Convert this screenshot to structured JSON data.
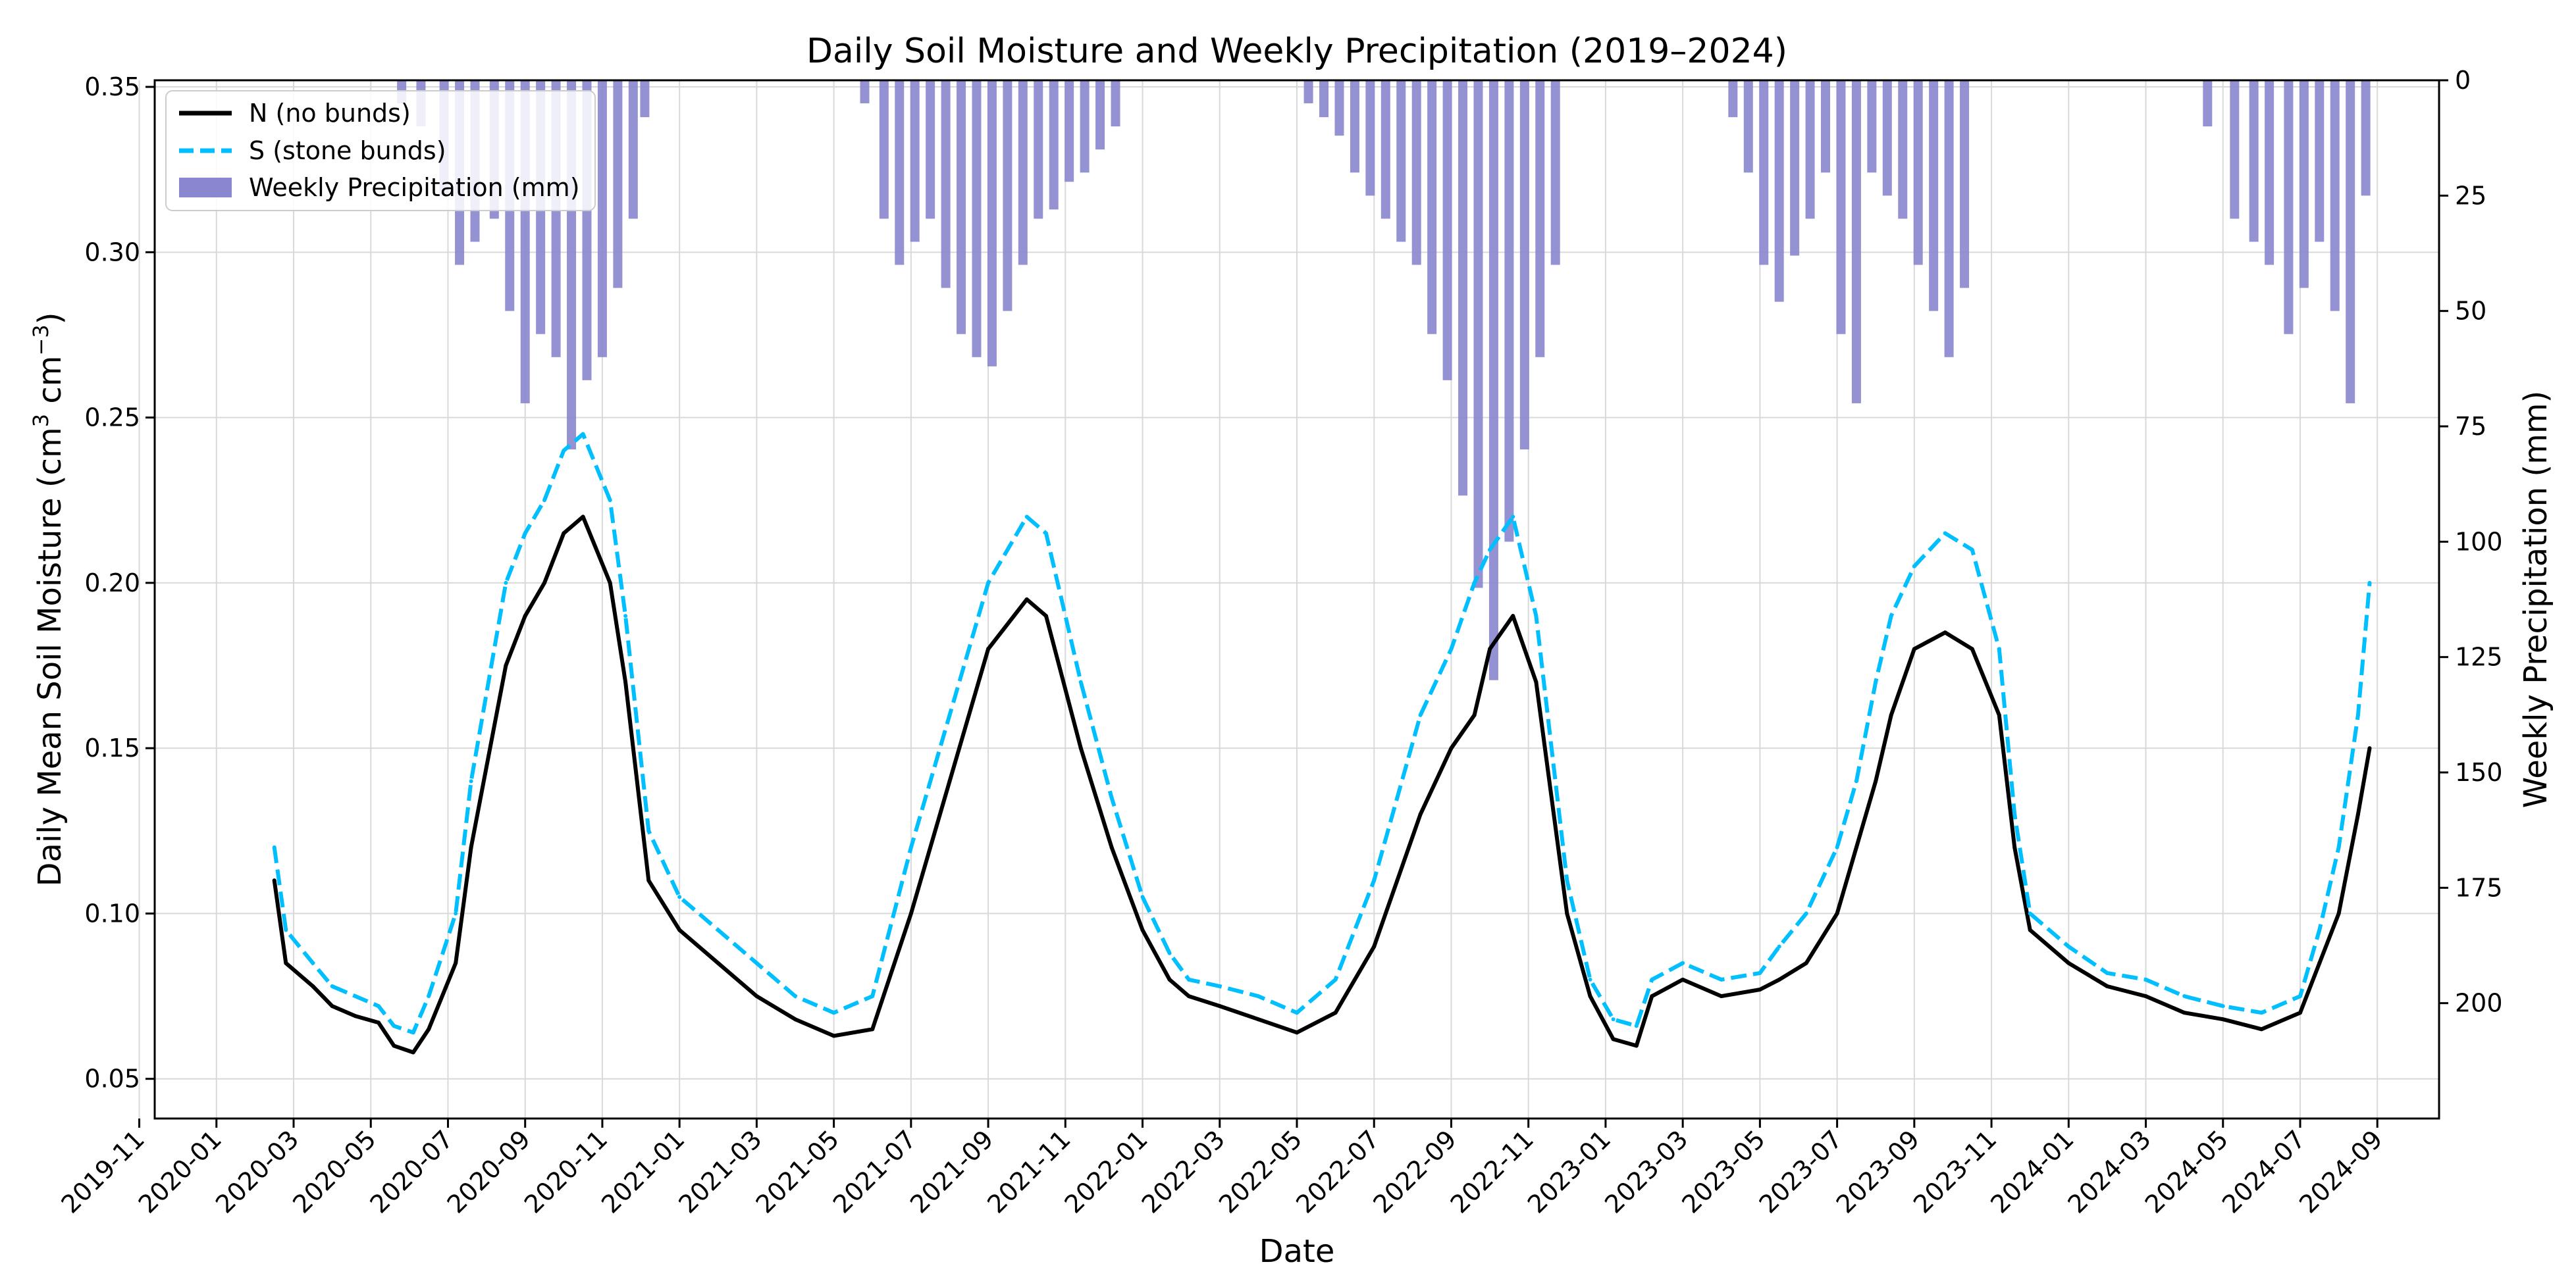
{
  "chart_data": {
    "type": "line",
    "title": "Daily Soil Moisture and Weekly Precipitation (2019–2024)",
    "xlabel": "Date",
    "ylabel": "Daily Mean Soil Moisture (cm³ cm⁻³)",
    "ylabel_parts": {
      "a": "Daily Mean Soil Moisture (cm",
      "b": "3",
      "c": " cm",
      "d": "−3",
      "e": ")"
    },
    "y2label": "Weekly Precipitation (mm)",
    "ylim": [
      0.038,
      0.352
    ],
    "y2lim_inverted": [
      0,
      225
    ],
    "y_ticks": [
      "0.05",
      "0.10",
      "0.15",
      "0.20",
      "0.25",
      "0.30",
      "0.35"
    ],
    "y_tick_values": [
      0.05,
      0.1,
      0.15,
      0.2,
      0.25,
      0.3,
      0.35
    ],
    "y2_ticks": [
      "0",
      "25",
      "50",
      "75",
      "100",
      "125",
      "150",
      "175",
      "200"
    ],
    "y2_tick_values": [
      0,
      25,
      50,
      75,
      100,
      125,
      150,
      175,
      200
    ],
    "x_ticks": [
      "2019-11",
      "2020-01",
      "2020-03",
      "2020-05",
      "2020-07",
      "2020-09",
      "2020-11",
      "2021-01",
      "2021-03",
      "2021-05",
      "2021-07",
      "2021-09",
      "2021-11",
      "2022-01",
      "2022-03",
      "2022-05",
      "2022-07",
      "2022-09",
      "2022-11",
      "2023-01",
      "2023-03",
      "2023-05",
      "2023-07",
      "2023-09",
      "2023-11",
      "2024-01",
      "2024-03",
      "2024-05",
      "2024-07",
      "2024-09"
    ],
    "x_range_months": [
      -1.6,
      57.6
    ],
    "grid": true,
    "legend_position": "top-left",
    "legend": {
      "n": "N (no bunds)",
      "s": "S (stone bunds)",
      "p": "Weekly Precipitation (mm)"
    },
    "colors": {
      "n": "#000000",
      "s": "#00bfff",
      "precip": "#8a86cf"
    },
    "series": [
      {
        "name": "N (no bunds)",
        "key": "n",
        "x_months": [
          1.5,
          1.8,
          2.5,
          3,
          3.6,
          4.2,
          4.6,
          5.1,
          5.5,
          6.2,
          6.6,
          7.5,
          8,
          8.5,
          9,
          9.5,
          10.2,
          10.6,
          11.2,
          12,
          13,
          14,
          15,
          16,
          17,
          18,
          19,
          20,
          21,
          21.5,
          22.4,
          23.2,
          24,
          24.7,
          25.2,
          26,
          27,
          28,
          29,
          30,
          30.6,
          31.2,
          32,
          32.6,
          33,
          33.6,
          34.2,
          35,
          35.6,
          36.2,
          36.8,
          37.2,
          38,
          39,
          40,
          40.5,
          41.2,
          42,
          42.5,
          43,
          43.4,
          44,
          44.8,
          45.5,
          46.2,
          46.6,
          47,
          48,
          49,
          50,
          51,
          52,
          53,
          54,
          54.5,
          55,
          55.5,
          55.8
        ],
        "values": [
          0.11,
          0.085,
          0.078,
          0.072,
          0.069,
          0.067,
          0.06,
          0.058,
          0.065,
          0.085,
          0.12,
          0.175,
          0.19,
          0.2,
          0.215,
          0.22,
          0.2,
          0.17,
          0.11,
          0.095,
          0.085,
          0.075,
          0.068,
          0.063,
          0.065,
          0.1,
          0.14,
          0.18,
          0.195,
          0.19,
          0.15,
          0.12,
          0.095,
          0.08,
          0.075,
          0.072,
          0.068,
          0.064,
          0.07,
          0.09,
          0.11,
          0.13,
          0.15,
          0.16,
          0.18,
          0.19,
          0.17,
          0.1,
          0.075,
          0.062,
          0.06,
          0.075,
          0.08,
          0.075,
          0.077,
          0.08,
          0.085,
          0.1,
          0.12,
          0.14,
          0.16,
          0.18,
          0.185,
          0.18,
          0.16,
          0.12,
          0.095,
          0.085,
          0.078,
          0.075,
          0.07,
          0.068,
          0.065,
          0.07,
          0.085,
          0.1,
          0.13,
          0.15
        ]
      },
      {
        "name": "S (stone bunds)",
        "key": "s",
        "x_months": [
          1.5,
          1.8,
          2.5,
          3,
          3.6,
          4.2,
          4.6,
          5.1,
          5.5,
          6.2,
          6.6,
          7.5,
          8,
          8.5,
          9,
          9.5,
          10.2,
          10.6,
          11.2,
          12,
          13,
          14,
          15,
          16,
          17,
          18,
          19,
          20,
          21,
          21.5,
          22.4,
          23.2,
          24,
          24.7,
          25.2,
          26,
          27,
          28,
          29,
          30,
          30.6,
          31.2,
          32,
          32.6,
          33,
          33.6,
          34.2,
          35,
          35.6,
          36.2,
          36.8,
          37.2,
          38,
          39,
          40,
          40.5,
          41.2,
          42,
          42.5,
          43,
          43.4,
          44,
          44.8,
          45.5,
          46.2,
          46.6,
          47,
          48,
          49,
          50,
          51,
          52,
          53,
          54,
          54.5,
          55,
          55.5,
          55.8
        ],
        "values": [
          0.12,
          0.095,
          0.085,
          0.078,
          0.075,
          0.072,
          0.066,
          0.064,
          0.075,
          0.1,
          0.14,
          0.2,
          0.215,
          0.225,
          0.24,
          0.245,
          0.225,
          0.19,
          0.125,
          0.105,
          0.095,
          0.085,
          0.075,
          0.07,
          0.075,
          0.12,
          0.16,
          0.2,
          0.22,
          0.215,
          0.17,
          0.135,
          0.105,
          0.088,
          0.08,
          0.078,
          0.075,
          0.07,
          0.08,
          0.11,
          0.135,
          0.16,
          0.18,
          0.2,
          0.21,
          0.22,
          0.19,
          0.11,
          0.08,
          0.068,
          0.066,
          0.08,
          0.085,
          0.08,
          0.082,
          0.09,
          0.1,
          0.12,
          0.14,
          0.17,
          0.19,
          0.205,
          0.215,
          0.21,
          0.18,
          0.13,
          0.1,
          0.09,
          0.082,
          0.08,
          0.075,
          0.072,
          0.07,
          0.075,
          0.095,
          0.12,
          0.16,
          0.2
        ]
      },
      {
        "name": "Weekly Precipitation (mm)",
        "key": "p",
        "type": "bar",
        "x_months": [
          4.8,
          5.3,
          5.9,
          6.3,
          6.7,
          7.2,
          7.6,
          8.0,
          8.4,
          8.8,
          9.2,
          9.6,
          10.0,
          10.4,
          10.8,
          11.1,
          16.8,
          17.3,
          17.7,
          18.1,
          18.5,
          18.9,
          19.3,
          19.7,
          20.1,
          20.5,
          20.9,
          21.3,
          21.7,
          22.1,
          22.5,
          22.9,
          23.3,
          28.3,
          28.7,
          29.1,
          29.5,
          29.9,
          30.3,
          30.7,
          31.1,
          31.5,
          31.9,
          32.3,
          32.7,
          33.1,
          33.5,
          33.9,
          34.3,
          34.7,
          39.3,
          39.7,
          40.1,
          40.5,
          40.9,
          41.3,
          41.7,
          42.1,
          42.5,
          42.9,
          43.3,
          43.7,
          44.1,
          44.5,
          44.9,
          45.3,
          51.6,
          52.3,
          52.8,
          53.2,
          53.7,
          54.1,
          54.5,
          54.9,
          55.3,
          55.7
        ],
        "values": [
          5,
          10,
          25,
          40,
          35,
          30,
          50,
          70,
          55,
          60,
          80,
          65,
          60,
          45,
          30,
          8,
          5,
          30,
          40,
          35,
          30,
          45,
          55,
          60,
          62,
          50,
          40,
          30,
          28,
          22,
          20,
          15,
          10,
          5,
          8,
          12,
          20,
          25,
          30,
          35,
          40,
          55,
          65,
          90,
          110,
          130,
          100,
          80,
          60,
          40,
          8,
          20,
          40,
          48,
          38,
          30,
          20,
          55,
          70,
          20,
          25,
          30,
          40,
          50,
          60,
          45,
          10,
          30,
          35,
          40,
          55,
          45,
          35,
          50,
          70,
          25
        ]
      }
    ]
  }
}
